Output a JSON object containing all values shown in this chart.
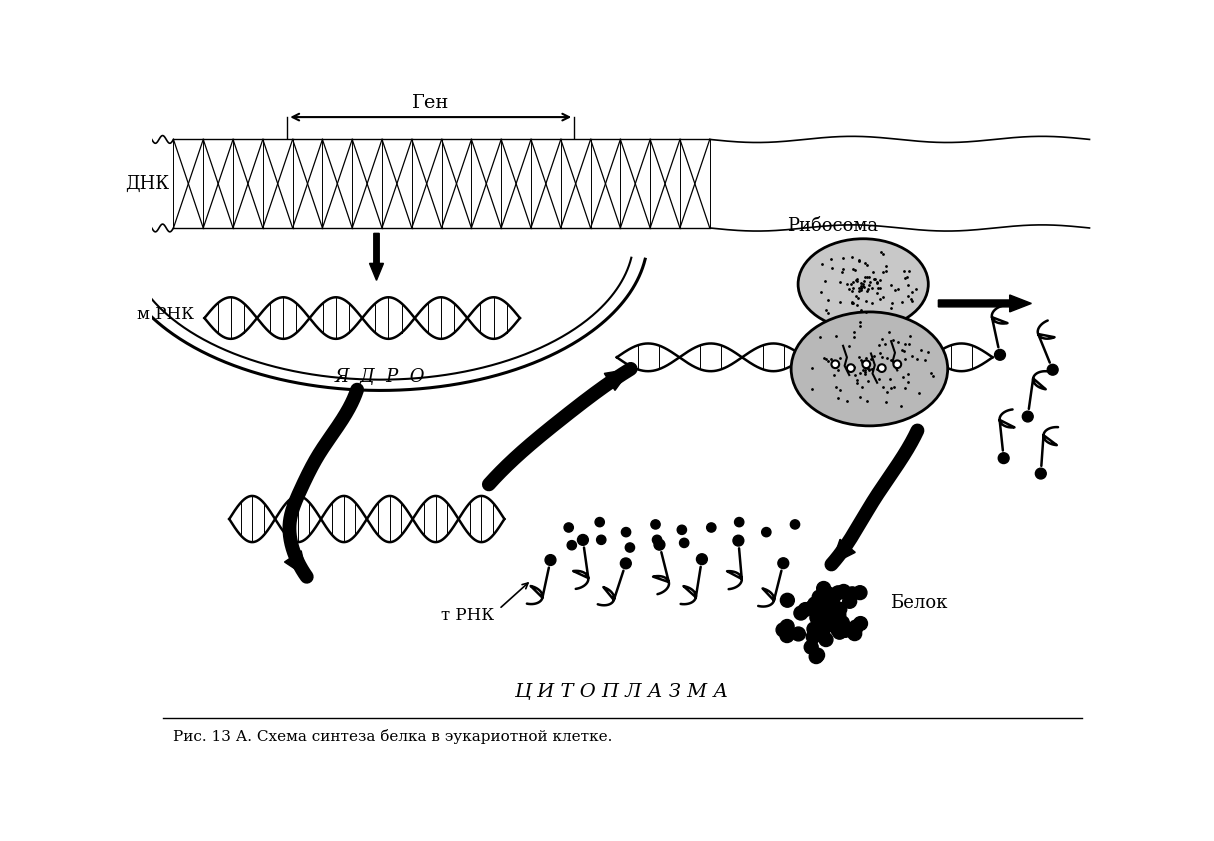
{
  "caption": "Рис. 13 А. Схема синтеза белка в эукариотной клетке.",
  "label_gen": "Ген",
  "label_dna": "ДНК",
  "label_mrna": "м РНК",
  "label_nucleus": "Я  Д  Р  О",
  "label_ribosome": "Рибосома",
  "label_trna": "т РНК",
  "label_cytoplasm": "Ц И Т О П Л А З М А",
  "label_protein": "Белок",
  "bg": "#ffffff",
  "black": "#000000",
  "fig_width": 12.14,
  "fig_height": 8.41,
  "dpi": 100
}
